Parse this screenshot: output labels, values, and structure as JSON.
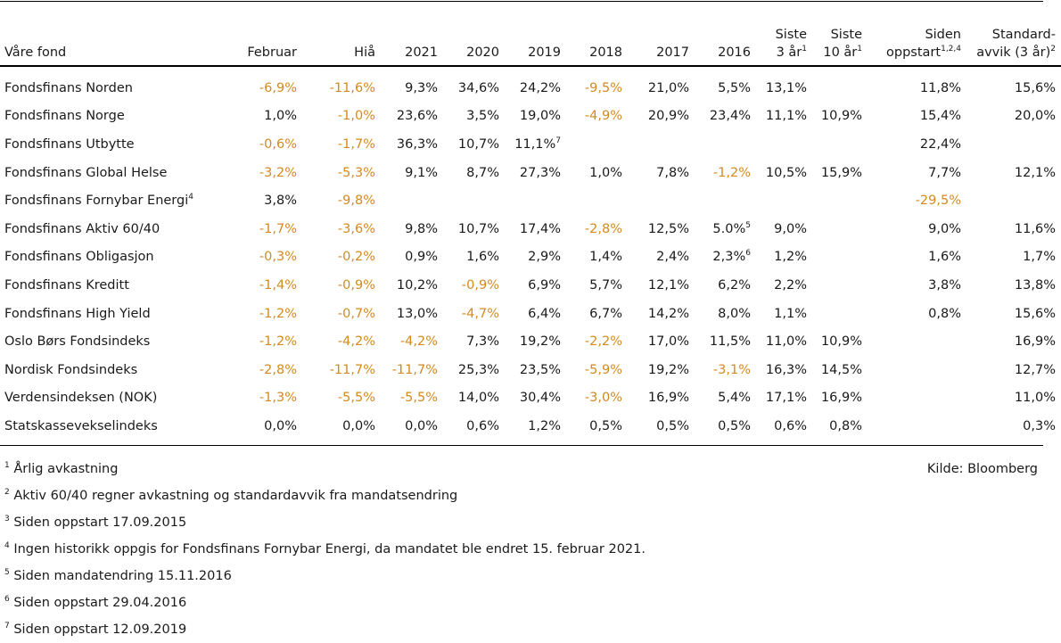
{
  "headers": [
    {
      "l1": "",
      "l2": "Våre fond",
      "sup": ""
    },
    {
      "l1": "",
      "l2": "Februar",
      "sup": ""
    },
    {
      "l1": "",
      "l2": "Hiå",
      "sup": ""
    },
    {
      "l1": "",
      "l2": "2021",
      "sup": ""
    },
    {
      "l1": "",
      "l2": "2020",
      "sup": ""
    },
    {
      "l1": "",
      "l2": "2019",
      "sup": ""
    },
    {
      "l1": "",
      "l2": "2018",
      "sup": ""
    },
    {
      "l1": "",
      "l2": "2017",
      "sup": ""
    },
    {
      "l1": "",
      "l2": "2016",
      "sup": ""
    },
    {
      "l1": "Siste",
      "l2": "3 år",
      "sup": "1"
    },
    {
      "l1": "Siste",
      "l2": "10 år",
      "sup": "1"
    },
    {
      "l1": "Siden",
      "l2": "oppstart",
      "sup": "1,2,4"
    },
    {
      "l1": "Standard-",
      "l2": "avvik (3 år)",
      "sup": "2"
    }
  ],
  "rows": [
    {
      "name": "Fondsfinans Norden",
      "name_sup": "",
      "cells": [
        {
          "v": "-6,9%",
          "neg": true,
          "sup": ""
        },
        {
          "v": "-11,6%",
          "neg": true,
          "sup": ""
        },
        {
          "v": "9,3%",
          "neg": false,
          "sup": ""
        },
        {
          "v": "34,6%",
          "neg": false,
          "sup": ""
        },
        {
          "v": "24,2%",
          "neg": false,
          "sup": ""
        },
        {
          "v": "-9,5%",
          "neg": true,
          "sup": ""
        },
        {
          "v": "21,0%",
          "neg": false,
          "sup": ""
        },
        {
          "v": "5,5%",
          "neg": false,
          "sup": ""
        },
        {
          "v": "13,1%",
          "neg": false,
          "sup": ""
        },
        {
          "v": "",
          "neg": false,
          "sup": ""
        },
        {
          "v": "11,8%",
          "neg": false,
          "sup": ""
        },
        {
          "v": "15,6%",
          "neg": false,
          "sup": ""
        }
      ]
    },
    {
      "name": "Fondsfinans Norge",
      "name_sup": "",
      "cells": [
        {
          "v": "1,0%",
          "neg": false,
          "sup": ""
        },
        {
          "v": "-1,0%",
          "neg": true,
          "sup": ""
        },
        {
          "v": "23,6%",
          "neg": false,
          "sup": ""
        },
        {
          "v": "3,5%",
          "neg": false,
          "sup": ""
        },
        {
          "v": "19,0%",
          "neg": false,
          "sup": ""
        },
        {
          "v": "-4,9%",
          "neg": true,
          "sup": ""
        },
        {
          "v": "20,9%",
          "neg": false,
          "sup": ""
        },
        {
          "v": "23,4%",
          "neg": false,
          "sup": ""
        },
        {
          "v": "11,1%",
          "neg": false,
          "sup": ""
        },
        {
          "v": "10,9%",
          "neg": false,
          "sup": ""
        },
        {
          "v": "15,4%",
          "neg": false,
          "sup": ""
        },
        {
          "v": "20,0%",
          "neg": false,
          "sup": ""
        }
      ]
    },
    {
      "name": "Fondsfinans Utbytte",
      "name_sup": "",
      "cells": [
        {
          "v": "-0,6%",
          "neg": true,
          "sup": ""
        },
        {
          "v": "-1,7%",
          "neg": true,
          "sup": ""
        },
        {
          "v": "36,3%",
          "neg": false,
          "sup": ""
        },
        {
          "v": "10,7%",
          "neg": false,
          "sup": ""
        },
        {
          "v": "11,1%",
          "neg": false,
          "sup": "7"
        },
        {
          "v": "",
          "neg": false,
          "sup": ""
        },
        {
          "v": "",
          "neg": false,
          "sup": ""
        },
        {
          "v": "",
          "neg": false,
          "sup": ""
        },
        {
          "v": "",
          "neg": false,
          "sup": ""
        },
        {
          "v": "",
          "neg": false,
          "sup": ""
        },
        {
          "v": "22,4%",
          "neg": false,
          "sup": ""
        },
        {
          "v": "",
          "neg": false,
          "sup": ""
        }
      ]
    },
    {
      "name": "Fondsfinans Global Helse",
      "name_sup": "",
      "cells": [
        {
          "v": "-3,2%",
          "neg": true,
          "sup": ""
        },
        {
          "v": "-5,3%",
          "neg": true,
          "sup": ""
        },
        {
          "v": "9,1%",
          "neg": false,
          "sup": ""
        },
        {
          "v": "8,7%",
          "neg": false,
          "sup": ""
        },
        {
          "v": "27,3%",
          "neg": false,
          "sup": ""
        },
        {
          "v": "1,0%",
          "neg": false,
          "sup": ""
        },
        {
          "v": "7,8%",
          "neg": false,
          "sup": ""
        },
        {
          "v": "-1,2%",
          "neg": true,
          "sup": ""
        },
        {
          "v": "10,5%",
          "neg": false,
          "sup": ""
        },
        {
          "v": "15,9%",
          "neg": false,
          "sup": ""
        },
        {
          "v": "7,7%",
          "neg": false,
          "sup": ""
        },
        {
          "v": "12,1%",
          "neg": false,
          "sup": ""
        }
      ]
    },
    {
      "name": "Fondsfinans Fornybar Energi",
      "name_sup": "4",
      "cells": [
        {
          "v": "3,8%",
          "neg": false,
          "sup": ""
        },
        {
          "v": "-9,8%",
          "neg": true,
          "sup": ""
        },
        {
          "v": "",
          "neg": false,
          "sup": ""
        },
        {
          "v": "",
          "neg": false,
          "sup": ""
        },
        {
          "v": "",
          "neg": false,
          "sup": ""
        },
        {
          "v": "",
          "neg": false,
          "sup": ""
        },
        {
          "v": "",
          "neg": false,
          "sup": ""
        },
        {
          "v": "",
          "neg": false,
          "sup": ""
        },
        {
          "v": "",
          "neg": false,
          "sup": ""
        },
        {
          "v": "",
          "neg": false,
          "sup": ""
        },
        {
          "v": "-29,5%",
          "neg": true,
          "sup": ""
        },
        {
          "v": "",
          "neg": false,
          "sup": ""
        }
      ]
    },
    {
      "name": "Fondsfinans Aktiv 60/40",
      "name_sup": "",
      "cells": [
        {
          "v": "-1,7%",
          "neg": true,
          "sup": ""
        },
        {
          "v": "-3,6%",
          "neg": true,
          "sup": ""
        },
        {
          "v": "9,8%",
          "neg": false,
          "sup": ""
        },
        {
          "v": "10,7%",
          "neg": false,
          "sup": ""
        },
        {
          "v": "17,4%",
          "neg": false,
          "sup": ""
        },
        {
          "v": "-2,8%",
          "neg": true,
          "sup": ""
        },
        {
          "v": "12,5%",
          "neg": false,
          "sup": ""
        },
        {
          "v": "5.0%",
          "neg": false,
          "sup": "5"
        },
        {
          "v": "9,0%",
          "neg": false,
          "sup": ""
        },
        {
          "v": "",
          "neg": false,
          "sup": ""
        },
        {
          "v": "9,0%",
          "neg": false,
          "sup": ""
        },
        {
          "v": "11,6%",
          "neg": false,
          "sup": ""
        }
      ]
    },
    {
      "name": "Fondsfinans Obligasjon",
      "name_sup": "",
      "cells": [
        {
          "v": "-0,3%",
          "neg": true,
          "sup": ""
        },
        {
          "v": "-0,2%",
          "neg": true,
          "sup": ""
        },
        {
          "v": "0,9%",
          "neg": false,
          "sup": ""
        },
        {
          "v": "1,6%",
          "neg": false,
          "sup": ""
        },
        {
          "v": "2,9%",
          "neg": false,
          "sup": ""
        },
        {
          "v": "1,4%",
          "neg": false,
          "sup": ""
        },
        {
          "v": "2,4%",
          "neg": false,
          "sup": ""
        },
        {
          "v": "2,3%",
          "neg": false,
          "sup": "6"
        },
        {
          "v": "1,2%",
          "neg": false,
          "sup": ""
        },
        {
          "v": "",
          "neg": false,
          "sup": ""
        },
        {
          "v": "1,6%",
          "neg": false,
          "sup": ""
        },
        {
          "v": "1,7%",
          "neg": false,
          "sup": ""
        }
      ]
    },
    {
      "name": "Fondsfinans Kreditt",
      "name_sup": "",
      "cells": [
        {
          "v": "-1,4%",
          "neg": true,
          "sup": ""
        },
        {
          "v": "-0,9%",
          "neg": true,
          "sup": ""
        },
        {
          "v": "10,2%",
          "neg": false,
          "sup": ""
        },
        {
          "v": "-0,9%",
          "neg": true,
          "sup": ""
        },
        {
          "v": "6,9%",
          "neg": false,
          "sup": ""
        },
        {
          "v": "5,7%",
          "neg": false,
          "sup": ""
        },
        {
          "v": "12,1%",
          "neg": false,
          "sup": ""
        },
        {
          "v": "6,2%",
          "neg": false,
          "sup": ""
        },
        {
          "v": "2,2%",
          "neg": false,
          "sup": ""
        },
        {
          "v": "",
          "neg": false,
          "sup": ""
        },
        {
          "v": "3,8%",
          "neg": false,
          "sup": ""
        },
        {
          "v": "13,8%",
          "neg": false,
          "sup": ""
        }
      ]
    },
    {
      "name": "Fondsfinans High Yield",
      "name_sup": "",
      "cells": [
        {
          "v": "-1,2%",
          "neg": true,
          "sup": ""
        },
        {
          "v": "-0,7%",
          "neg": true,
          "sup": ""
        },
        {
          "v": "13,0%",
          "neg": false,
          "sup": ""
        },
        {
          "v": "-4,7%",
          "neg": true,
          "sup": ""
        },
        {
          "v": "6,4%",
          "neg": false,
          "sup": ""
        },
        {
          "v": "6,7%",
          "neg": false,
          "sup": ""
        },
        {
          "v": "14,2%",
          "neg": false,
          "sup": ""
        },
        {
          "v": "8,0%",
          "neg": false,
          "sup": ""
        },
        {
          "v": "1,1%",
          "neg": false,
          "sup": ""
        },
        {
          "v": "",
          "neg": false,
          "sup": ""
        },
        {
          "v": "0,8%",
          "neg": false,
          "sup": ""
        },
        {
          "v": "15,6%",
          "neg": false,
          "sup": ""
        }
      ]
    },
    {
      "name": "Oslo Børs Fondsindeks",
      "name_sup": "",
      "cells": [
        {
          "v": "-1,2%",
          "neg": true,
          "sup": ""
        },
        {
          "v": "-4,2%",
          "neg": true,
          "sup": ""
        },
        {
          "v": "-4,2%",
          "neg": true,
          "sup": ""
        },
        {
          "v": "7,3%",
          "neg": false,
          "sup": ""
        },
        {
          "v": "19,2%",
          "neg": false,
          "sup": ""
        },
        {
          "v": "-2,2%",
          "neg": true,
          "sup": ""
        },
        {
          "v": "17,0%",
          "neg": false,
          "sup": ""
        },
        {
          "v": "11,5%",
          "neg": false,
          "sup": ""
        },
        {
          "v": "11,0%",
          "neg": false,
          "sup": ""
        },
        {
          "v": "10,9%",
          "neg": false,
          "sup": ""
        },
        {
          "v": "",
          "neg": false,
          "sup": ""
        },
        {
          "v": "16,9%",
          "neg": false,
          "sup": ""
        }
      ]
    },
    {
      "name": "Nordisk Fondsindeks",
      "name_sup": "",
      "cells": [
        {
          "v": "-2,8%",
          "neg": true,
          "sup": ""
        },
        {
          "v": "-11,7%",
          "neg": true,
          "sup": ""
        },
        {
          "v": "-11,7%",
          "neg": true,
          "sup": ""
        },
        {
          "v": "25,3%",
          "neg": false,
          "sup": ""
        },
        {
          "v": "23,5%",
          "neg": false,
          "sup": ""
        },
        {
          "v": "-5,9%",
          "neg": true,
          "sup": ""
        },
        {
          "v": "19,2%",
          "neg": false,
          "sup": ""
        },
        {
          "v": "-3,1%",
          "neg": true,
          "sup": ""
        },
        {
          "v": "16,3%",
          "neg": false,
          "sup": ""
        },
        {
          "v": "14,5%",
          "neg": false,
          "sup": ""
        },
        {
          "v": "",
          "neg": false,
          "sup": ""
        },
        {
          "v": "12,7%",
          "neg": false,
          "sup": ""
        }
      ]
    },
    {
      "name": "Verdensindeksen (NOK)",
      "name_sup": "",
      "cells": [
        {
          "v": "-1,3%",
          "neg": true,
          "sup": ""
        },
        {
          "v": "-5,5%",
          "neg": true,
          "sup": ""
        },
        {
          "v": "-5,5%",
          "neg": true,
          "sup": ""
        },
        {
          "v": "14,0%",
          "neg": false,
          "sup": ""
        },
        {
          "v": "30,4%",
          "neg": false,
          "sup": ""
        },
        {
          "v": "-3,0%",
          "neg": true,
          "sup": ""
        },
        {
          "v": "16,9%",
          "neg": false,
          "sup": ""
        },
        {
          "v": "5,4%",
          "neg": false,
          "sup": ""
        },
        {
          "v": "17,1%",
          "neg": false,
          "sup": ""
        },
        {
          "v": "16,9%",
          "neg": false,
          "sup": ""
        },
        {
          "v": "",
          "neg": false,
          "sup": ""
        },
        {
          "v": "11,0%",
          "neg": false,
          "sup": ""
        }
      ]
    },
    {
      "name": "Statskassevekselindeks",
      "name_sup": "",
      "cells": [
        {
          "v": "0,0%",
          "neg": false,
          "sup": ""
        },
        {
          "v": "0,0%",
          "neg": false,
          "sup": ""
        },
        {
          "v": "0,0%",
          "neg": false,
          "sup": ""
        },
        {
          "v": "0,6%",
          "neg": false,
          "sup": ""
        },
        {
          "v": "1,2%",
          "neg": false,
          "sup": ""
        },
        {
          "v": "0,5%",
          "neg": false,
          "sup": ""
        },
        {
          "v": "0,5%",
          "neg": false,
          "sup": ""
        },
        {
          "v": "0,5%",
          "neg": false,
          "sup": ""
        },
        {
          "v": "0,6%",
          "neg": false,
          "sup": ""
        },
        {
          "v": "0,8%",
          "neg": false,
          "sup": ""
        },
        {
          "v": "",
          "neg": false,
          "sup": ""
        },
        {
          "v": "0,3%",
          "neg": false,
          "sup": ""
        }
      ]
    }
  ],
  "footnotes": [
    {
      "num": "1",
      "text": "Årlig avkastning"
    },
    {
      "num": "2",
      "text": "Aktiv 60/40 regner avkastning og standardavvik fra mandatsendring"
    },
    {
      "num": "3",
      "text": "Siden oppstart 17.09.2015"
    },
    {
      "num": "4",
      "text": "Ingen historikk oppgis for Fondsfinans Fornybar Energi, da mandatet ble endret 15. februar 2021."
    },
    {
      "num": "5",
      "text": "Siden mandatendring 15.11.2016"
    },
    {
      "num": "6",
      "text": "Siden oppstart 29.04.2016"
    },
    {
      "num": "7",
      "text": "Siden oppstart 12.09.2019"
    }
  ],
  "source": "Kilde: Bloomberg",
  "colors": {
    "negative": "#d48a1e",
    "text": "#1a1a1a",
    "rule": "#000000"
  }
}
